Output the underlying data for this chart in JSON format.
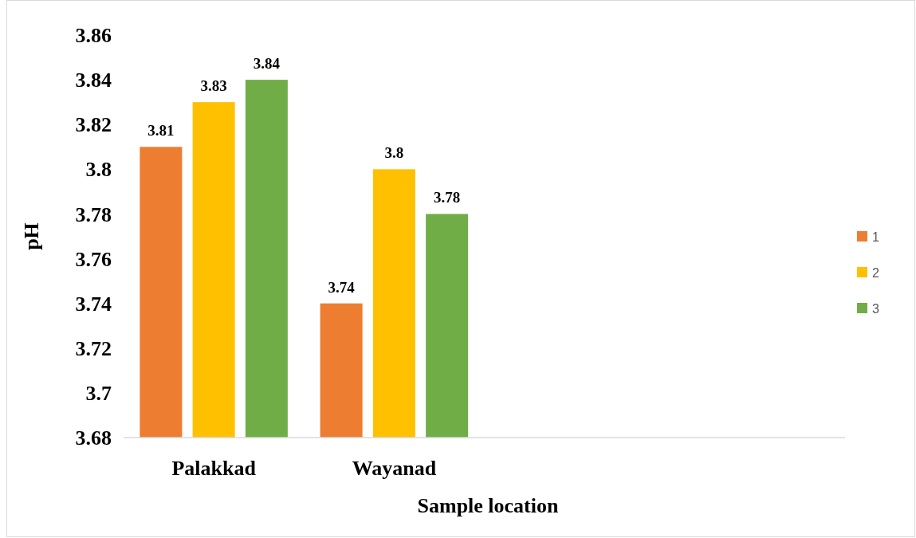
{
  "chart_data": {
    "type": "bar",
    "xlabel": "Sample location",
    "ylabel": "pH",
    "categories": [
      "Palakkad",
      "Wayanad",
      null,
      null
    ],
    "series": [
      {
        "name": "1",
        "color": "#ed7d31",
        "values": [
          3.81,
          3.74,
          null,
          null
        ]
      },
      {
        "name": "2",
        "color": "#ffc000",
        "values": [
          3.83,
          3.8,
          null,
          null
        ]
      },
      {
        "name": "3",
        "color": "#70ad47",
        "values": [
          3.84,
          3.78,
          null,
          null
        ]
      }
    ],
    "ylim": [
      3.68,
      3.86
    ],
    "yticks": [
      3.68,
      3.7,
      3.72,
      3.74,
      3.76,
      3.78,
      3.8,
      3.82,
      3.84,
      3.86
    ],
    "data_labels": true,
    "legend": "right",
    "grid": false
  }
}
